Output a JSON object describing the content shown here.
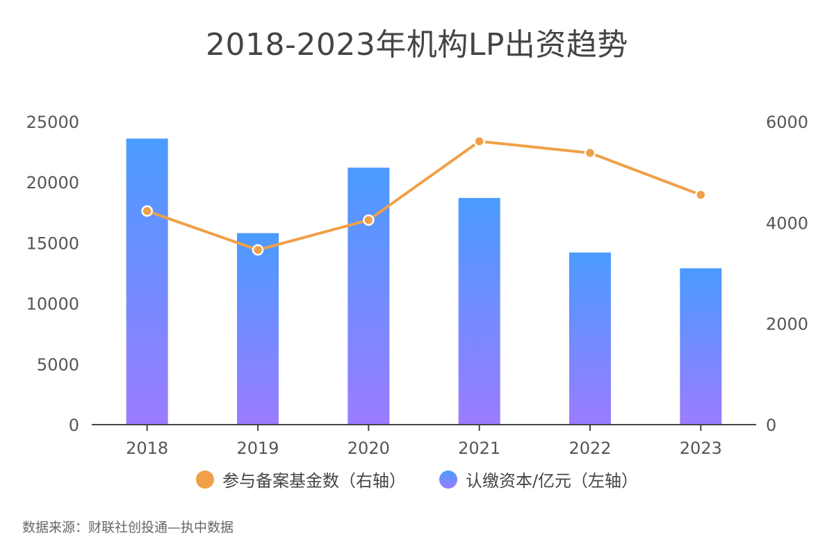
{
  "title": "2018-2023年机构LP出资趋势",
  "source_note": "数据来源：财联社创投通—执中数据",
  "colors": {
    "bar_top": "#4a9bff",
    "bar_bottom": "#9b7cff",
    "line": "#f0a048",
    "axis": "#444444"
  },
  "chart_data": {
    "type": "bar+line",
    "categories": [
      "2018",
      "2019",
      "2020",
      "2021",
      "2022",
      "2023"
    ],
    "series": [
      {
        "name": "认缴资本/亿元（左轴）",
        "type": "bar",
        "axis": "left",
        "values": [
          23600,
          15800,
          21200,
          18700,
          14200,
          12900
        ]
      },
      {
        "name": "参与备案基金数（右轴）",
        "type": "line",
        "axis": "right",
        "values": [
          4230,
          3460,
          4050,
          5610,
          5380,
          4550
        ]
      }
    ],
    "y_left": {
      "min": 0,
      "max": 25000,
      "ticks": [
        0,
        5000,
        10000,
        15000,
        20000,
        25000
      ]
    },
    "y_right": {
      "min": 0,
      "max": 6000,
      "ticks": [
        0,
        2000,
        4000,
        6000
      ]
    },
    "legend_position": "bottom",
    "grid": false
  },
  "legend": [
    {
      "label": "参与备案基金数（右轴）",
      "color": "#f0a048"
    },
    {
      "label": "认缴资本/亿元（左轴）",
      "color": "#7a8cff"
    }
  ]
}
